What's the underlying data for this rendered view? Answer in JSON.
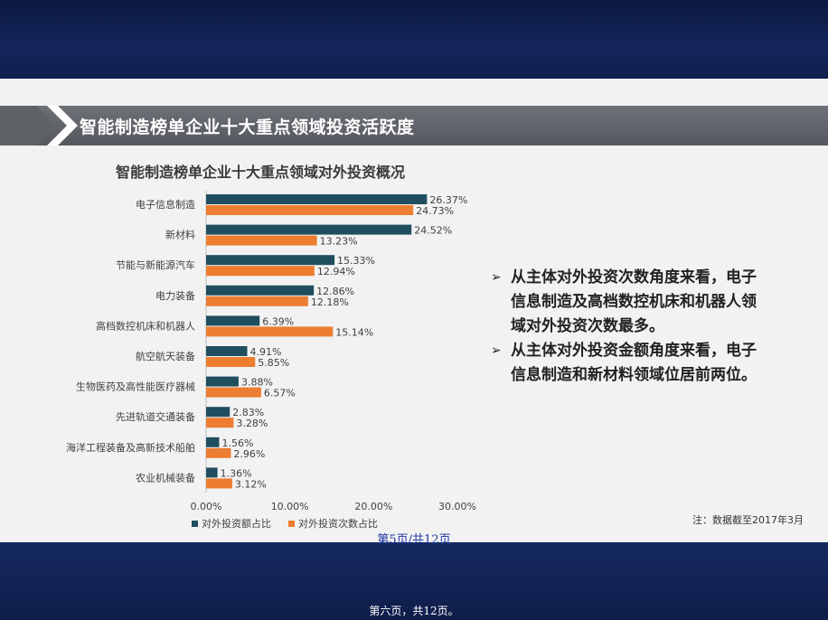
{
  "banner": {
    "title": "智能制造榜单企业十大重点领域投资活跃度"
  },
  "chart_data": {
    "type": "bar",
    "orientation": "horizontal",
    "title": "智能制造榜单企业十大重点领域对外投资概况",
    "categories": [
      "电子信息制造",
      "新材料",
      "节能与新能源汽车",
      "电力装备",
      "高档数控机床和机器人",
      "航空航天装备",
      "生物医药及高性能医疗器械",
      "先进轨道交通装备",
      "海洋工程装备及高新技术船舶",
      "农业机械装备"
    ],
    "series": [
      {
        "name": "对外投资额占比",
        "color": "#1f4e5f",
        "values": [
          26.37,
          24.52,
          15.33,
          12.86,
          6.39,
          4.91,
          3.88,
          2.83,
          1.56,
          1.36
        ],
        "labels": [
          "26.37%",
          "24.52%",
          "15.33%",
          "12.86%",
          "6.39%",
          "4.91%",
          "3.88%",
          "2.83%",
          "1.56%",
          "1.36%"
        ]
      },
      {
        "name": "对外投资次数占比",
        "color": "#ed7d31",
        "values": [
          24.73,
          13.23,
          12.94,
          12.18,
          15.14,
          5.85,
          6.57,
          3.28,
          2.96,
          3.12
        ],
        "labels": [
          "24.73%",
          "13.23%",
          "12.94%",
          "12.18%",
          "15.14%",
          "5.85%",
          "6.57%",
          "3.28%",
          "2.96%",
          "3.12%"
        ]
      }
    ],
    "xlim": [
      0,
      30
    ],
    "xticks": [
      "0.00%",
      "10.00%",
      "20.00%",
      "30.00%"
    ],
    "legend_position": "bottom-left"
  },
  "bullets": [
    "从主体对外投资次数角度来看，电子信息制造及高档数控机床和机器人领域对外投资次数最多。",
    "从主体对外投资金额角度来看，电子信息制造和新材料领域位居前两位。"
  ],
  "bullet_symbol": "➢",
  "note": "注：数据截至2017年3月",
  "page_indicator_top": "第5页/共12页",
  "page_indicator_bottom": "第六页，共12页。"
}
